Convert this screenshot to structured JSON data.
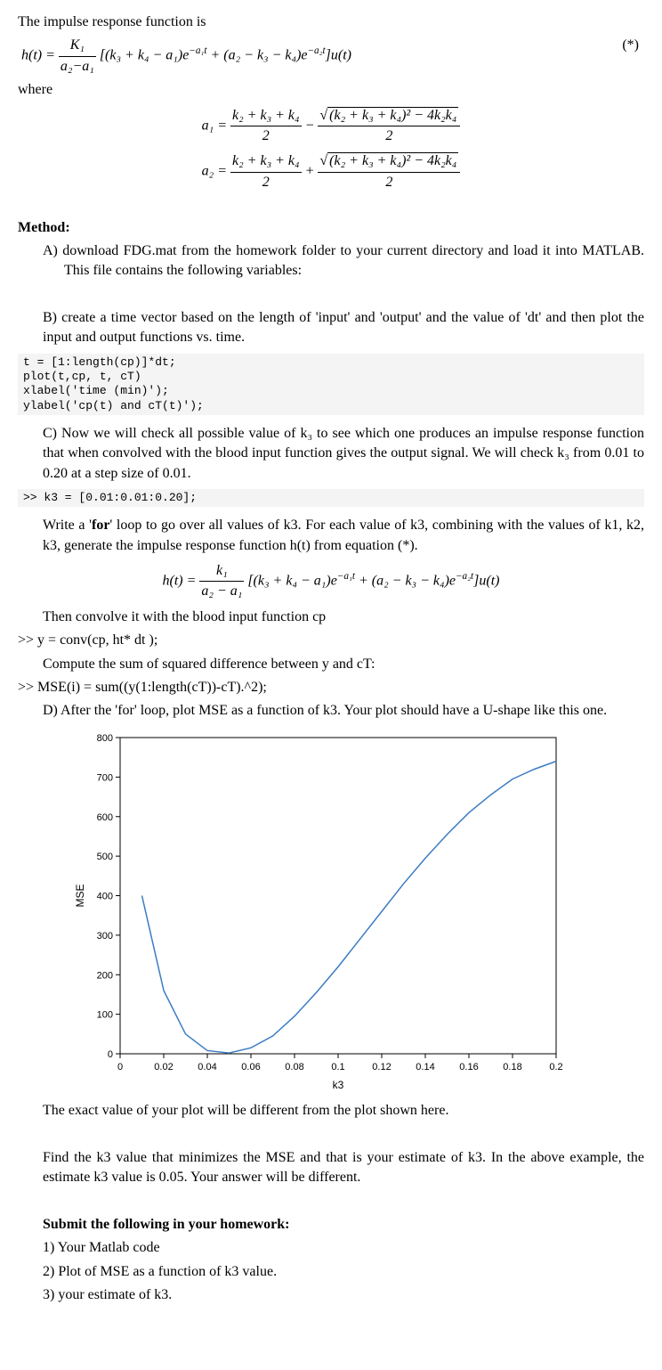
{
  "p_intro": "The impulse response function is",
  "eq_star_tag": "(*)",
  "eq_star_left": "h(t) = ",
  "eq_star_frac_num": "K₁",
  "eq_star_frac_den": "a₂−a₁",
  "eq_star_after": " [(k₃ + k₄ − a₁)e",
  "eq_star_sup1": "−a₁t",
  "eq_star_mid": " + (a₂ − k₃ − k₄)e",
  "eq_star_sup2": "−a₂t",
  "eq_star_end": "]u(t)",
  "p_where": "where",
  "eq_a1_left": "a₁ = ",
  "eq_a_num": "k₂ + k₃ + k₄",
  "eq_a_den": "2",
  "eq_a_minus": " − ",
  "eq_a_sqrt_inner": "(k₂ + k₃ + k₄)² − 4k₂k₄",
  "eq_a2_left": "a₂ = ",
  "eq_a_plus": " + ",
  "method_head": "Method:",
  "step_a": "A) download FDG.mat from the homework folder to your current directory and load it into MATLAB. This file contains the following variables:",
  "step_b": "B) create a time vector based on the length of 'input' and 'output' and the value of 'dt' and then plot the input and output functions vs. time.",
  "code_b": "t = [1:length(cp)]*dt;\nplot(t,cp, t, cT)\nxlabel('time (min)');\nylabel('cp(t) and cT(t)');",
  "step_c1": "C) Now we will check all possible value of k₃ to see which one produces an impulse response function that when convolved with the blood input function gives the output signal. We will check k₃ from 0.01 to 0.20 at a step size of 0.01.",
  "code_c1": ">> k3 = [0.01:0.01:0.20];",
  "step_c2a": "Write a '",
  "step_c2b": "for",
  "step_c2c": "' loop to go over all values of k3. For each value of k3, combining with the values of k1, k2, k3, generate the impulse response function h(t) from equation (*).",
  "eq2_left": "h(t) = ",
  "eq2_frac_num": "k₁",
  "eq2_frac_den": "a₂ − a₁",
  "eq2_after": " [(k₃ + k₄ − a₁)e",
  "eq2_sup1": "−a₁t",
  "eq2_mid": " + (a₂ − k₃ − k₄)e",
  "eq2_sup2": "−a₂t",
  "eq2_end": "]u(t)",
  "p_conv": "Then convolve it with the blood input function cp",
  "code_conv": ">>  y = conv(cp, ht* dt );",
  "p_sse": "Compute the sum of squared difference between y and cT:",
  "code_sse": ">>      MSE(i) = sum((y(1:length(cT))-cT).^2);",
  "step_d": "D) After the 'for' loop, plot MSE as a function of k3. Your plot should have a U-shape like this one.",
  "chart": {
    "type": "line",
    "xlabel": "k3",
    "ylabel": "MSE",
    "xlim": [
      0,
      0.2
    ],
    "ylim": [
      0,
      800
    ],
    "xticks": [
      0,
      0.02,
      0.04,
      0.06,
      0.08,
      0.1,
      0.12,
      0.14,
      0.16,
      0.18,
      0.2
    ],
    "yticks": [
      0,
      100,
      200,
      300,
      400,
      500,
      600,
      700,
      800
    ],
    "line_color": "#3b7cc4",
    "axis_color": "#000000",
    "tick_fontsize": 11,
    "label_fontsize": 12,
    "x": [
      0.01,
      0.02,
      0.03,
      0.04,
      0.05,
      0.06,
      0.07,
      0.08,
      0.09,
      0.1,
      0.11,
      0.12,
      0.13,
      0.14,
      0.15,
      0.16,
      0.17,
      0.18,
      0.19,
      0.2
    ],
    "y": [
      400,
      160,
      50,
      8,
      2,
      15,
      45,
      95,
      155,
      220,
      290,
      360,
      430,
      495,
      555,
      610,
      655,
      695,
      720,
      740
    ]
  },
  "p_after_chart": "The exact value of your plot will be different from the plot shown here.",
  "p_find": "Find the k3 value that minimizes the MSE and that is your estimate of k3. In the above example, the estimate k3 value is 0.05. Your answer will be different.",
  "submit_head": "Submit the following in your homework:",
  "submit_1": "1) Your Matlab code",
  "submit_2": "2) Plot of MSE as a function of k3 value.",
  "submit_3": "3) your estimate of k3."
}
